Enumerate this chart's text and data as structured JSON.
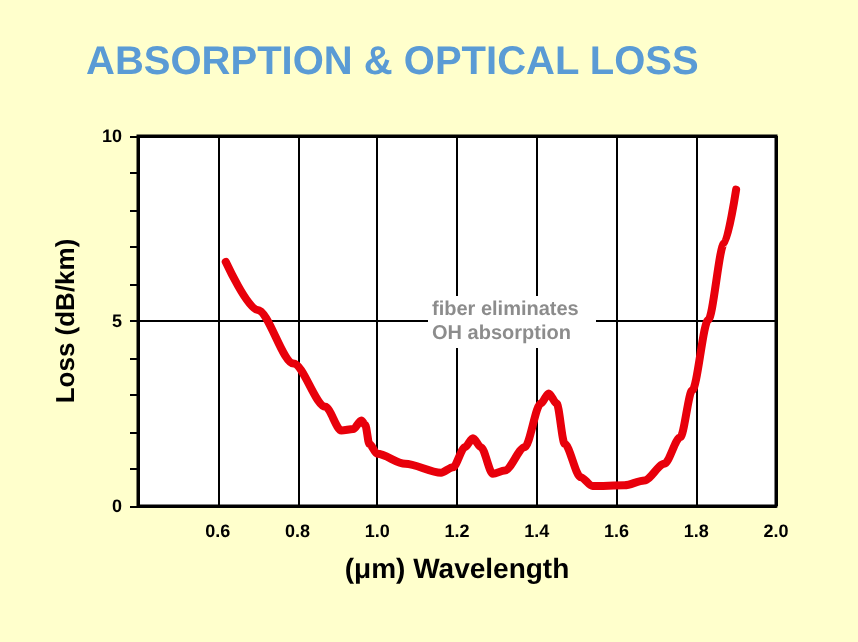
{
  "chart_data": {
    "type": "line",
    "title": "ABSORPTION & OPTICAL LOSS",
    "xlabel": "(μm) Wavelength",
    "ylabel": "Loss (dB/km)",
    "annotations": [
      "fiber eliminates OH absorption"
    ],
    "x": [
      0.62,
      0.7,
      0.79,
      0.87,
      0.91,
      0.94,
      0.96,
      0.97,
      0.98,
      1.0,
      1.07,
      1.16,
      1.19,
      1.22,
      1.24,
      1.26,
      1.29,
      1.32,
      1.37,
      1.41,
      1.43,
      1.45,
      1.47,
      1.51,
      1.54,
      1.62,
      1.67,
      1.72,
      1.76,
      1.79,
      1.83,
      1.87,
      1.9
    ],
    "series": [
      {
        "color": "#e8000b",
        "values": [
          6.6,
          5.3,
          3.85,
          2.68,
          2.04,
          2.08,
          2.31,
          2.19,
          1.68,
          1.41,
          1.14,
          0.9,
          1.05,
          1.59,
          1.83,
          1.59,
          0.87,
          0.96,
          1.59,
          2.77,
          3.04,
          2.77,
          1.68,
          0.78,
          0.54,
          0.56,
          0.69,
          1.14,
          1.86,
          3.13,
          5.03,
          7.1,
          8.55
        ]
      }
    ],
    "xlim": [
      0.4,
      2.0
    ],
    "xticks": [
      0.6,
      0.8,
      {
        "value": 1,
        "label": "1.0"
      },
      1.2,
      1.4,
      1.6,
      1.8,
      {
        "value": 2,
        "label": "2.0"
      }
    ],
    "ylim": [
      0,
      10
    ],
    "yticks": [
      0,
      {
        "value": 1,
        "label": null
      },
      {
        "value": 2,
        "label": null
      },
      {
        "value": 3,
        "label": null
      },
      {
        "value": 4,
        "label": null
      },
      5,
      {
        "value": 6,
        "label": null
      },
      {
        "value": 7,
        "label": null
      },
      {
        "value": 8,
        "label": null
      },
      {
        "value": 9,
        "label": null
      },
      10
    ],
    "grid": true,
    "marker": "none",
    "line_style": "solid"
  }
}
